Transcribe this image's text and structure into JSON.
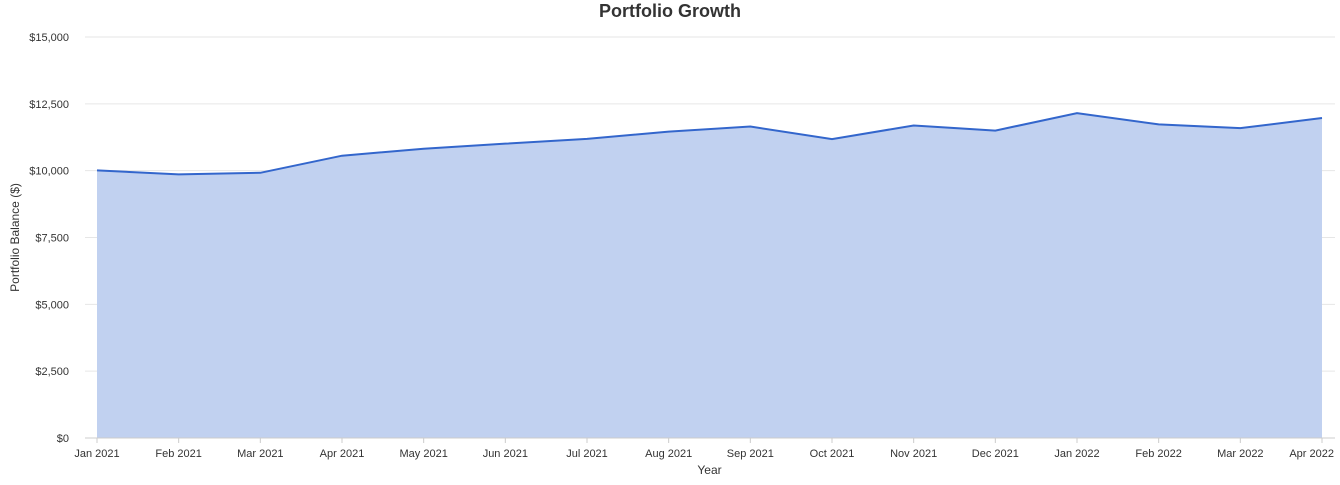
{
  "chart_data": {
    "type": "area",
    "title": "Portfolio Growth",
    "xlabel": "Year",
    "ylabel": "Portfolio Balance ($)",
    "categories": [
      "Jan 2021",
      "Feb 2021",
      "Mar 2021",
      "Apr 2021",
      "May 2021",
      "Jun 2021",
      "Jul 2021",
      "Aug 2021",
      "Sep 2021",
      "Oct 2021",
      "Nov 2021",
      "Dec 2021",
      "Jan 2022",
      "Feb 2022",
      "Mar 2022",
      "Apr 2022"
    ],
    "values": [
      10010,
      9860,
      9920,
      10560,
      10820,
      11010,
      11190,
      11460,
      11650,
      11180,
      11690,
      11500,
      12150,
      11730,
      11590,
      11970
    ],
    "ylim": [
      0,
      15000
    ],
    "yticks": [
      0,
      2500,
      5000,
      7500,
      10000,
      12500,
      15000
    ],
    "ytick_labels": [
      "$0",
      "$2,500",
      "$5,000",
      "$7,500",
      "$10,000",
      "$12,500",
      "$15,000"
    ],
    "grid": true,
    "legend": "none",
    "colors": {
      "line": "#3366cc",
      "fill": "#c1d1f0",
      "grid": "#e6e6e6"
    }
  }
}
